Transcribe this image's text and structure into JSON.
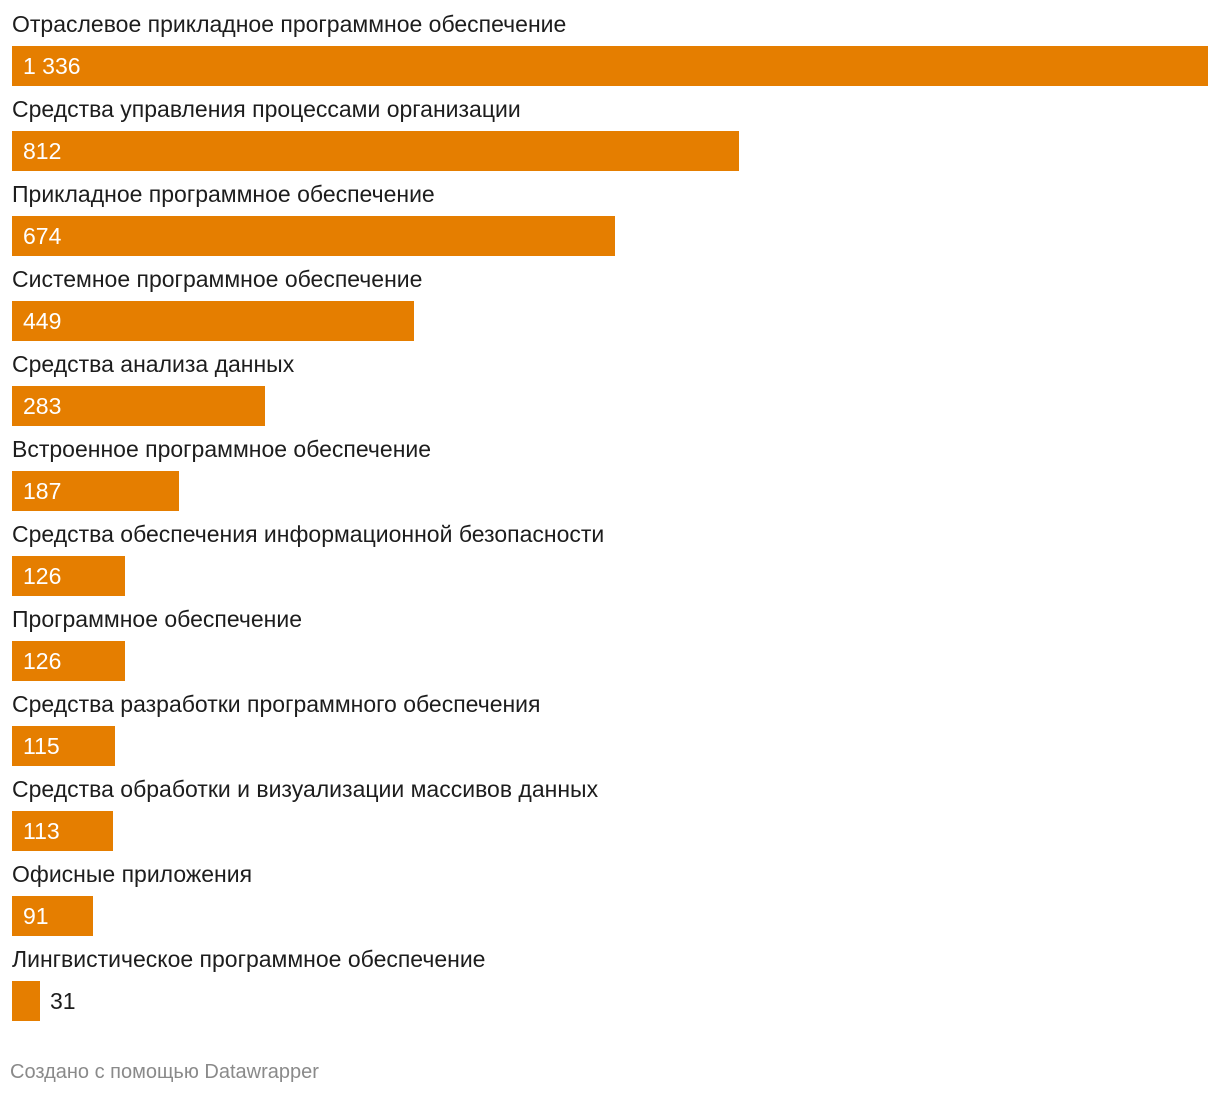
{
  "chart_data": {
    "type": "bar",
    "orientation": "horizontal",
    "categories": [
      "Отраслевое прикладное программное обеспечение",
      "Средства управления процессами организации",
      "Прикладное программное обеспечение",
      "Системное программное обеспечение",
      "Средства анализа данных",
      "Встроенное программное обеспечение",
      "Средства обеспечения информационной безопасности",
      "Программное обеспечение",
      "Средства разработки программного обеспечения",
      "Средства обработки и визуализации массивов данных",
      "Офисные приложения",
      "Лингвистическое программное обеспечение"
    ],
    "values": [
      1336,
      812,
      674,
      449,
      283,
      187,
      126,
      126,
      115,
      113,
      91,
      31
    ],
    "value_labels": [
      "1 336",
      "812",
      "674",
      "449",
      "283",
      "187",
      "126",
      "126",
      "115",
      "113",
      "91",
      "31"
    ],
    "xlim": [
      0,
      1336
    ],
    "grid": false,
    "bar_color": "#e57e00",
    "label_color_inside": "#ffffff",
    "label_color_outside": "#1d1d1d"
  },
  "footer": {
    "credit": "Создано с помощью Datawrapper"
  }
}
